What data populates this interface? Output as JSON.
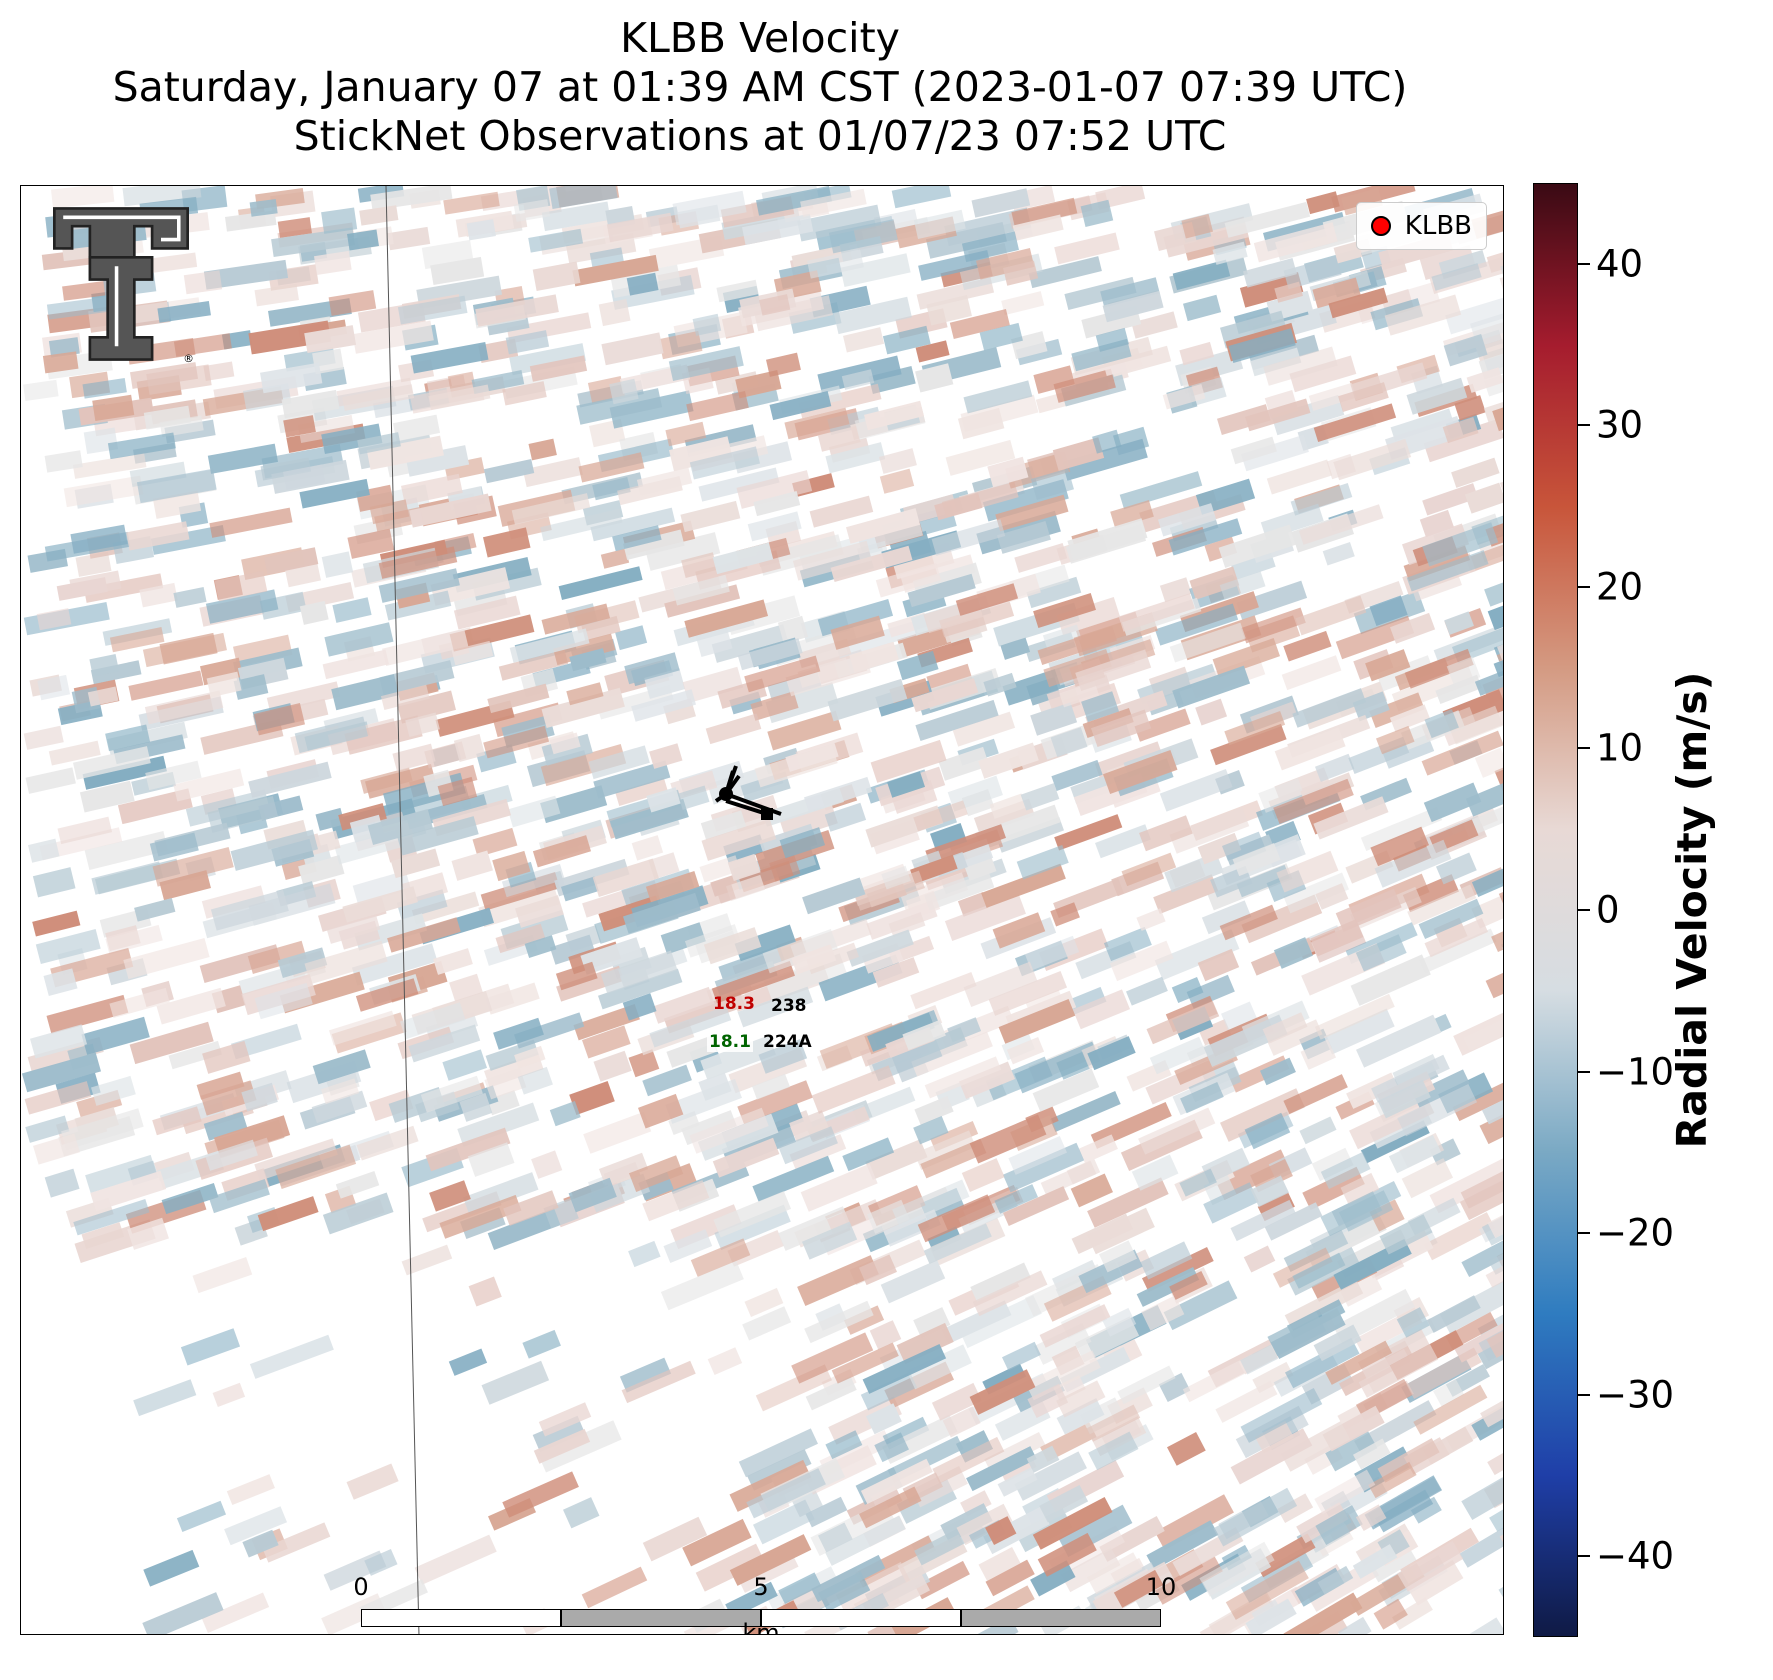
{
  "title": {
    "line1": "KLBB Velocity",
    "line2": "Saturday, January 07 at 01:39 AM CST (2023-01-07 07:39 UTC)",
    "line3": "StickNet Observations at 01/07/23 07:52 UTC"
  },
  "legend": {
    "label": "KLBB",
    "marker_color": "#ff0000"
  },
  "logo": {
    "icon": "texas-tech-double-t-logo",
    "mark": "®"
  },
  "stations": [
    {
      "id": "238",
      "value": "18.3",
      "value_color": "#c00000"
    },
    {
      "id": "224A",
      "value": "18.1",
      "value_color": "#006400"
    }
  ],
  "scalebar": {
    "ticks": [
      "0",
      "5",
      "10"
    ],
    "unit": "km"
  },
  "colorbar": {
    "title": "Radial Velocity (m/s)",
    "min": -45,
    "max": 45,
    "tick_labels": [
      "40",
      "30",
      "20",
      "10",
      "0",
      "−10",
      "−20",
      "−30",
      "−40"
    ],
    "tick_values": [
      40,
      30,
      20,
      10,
      0,
      -10,
      -20,
      -30,
      -40
    ],
    "colors": [
      "#0f1a45",
      "#1f3fa8",
      "#2f7cc0",
      "#7aa9c4",
      "#d6dde2",
      "#e8d9d5",
      "#d49a82",
      "#c8553a",
      "#a51c2e",
      "#3a0a14"
    ]
  }
}
